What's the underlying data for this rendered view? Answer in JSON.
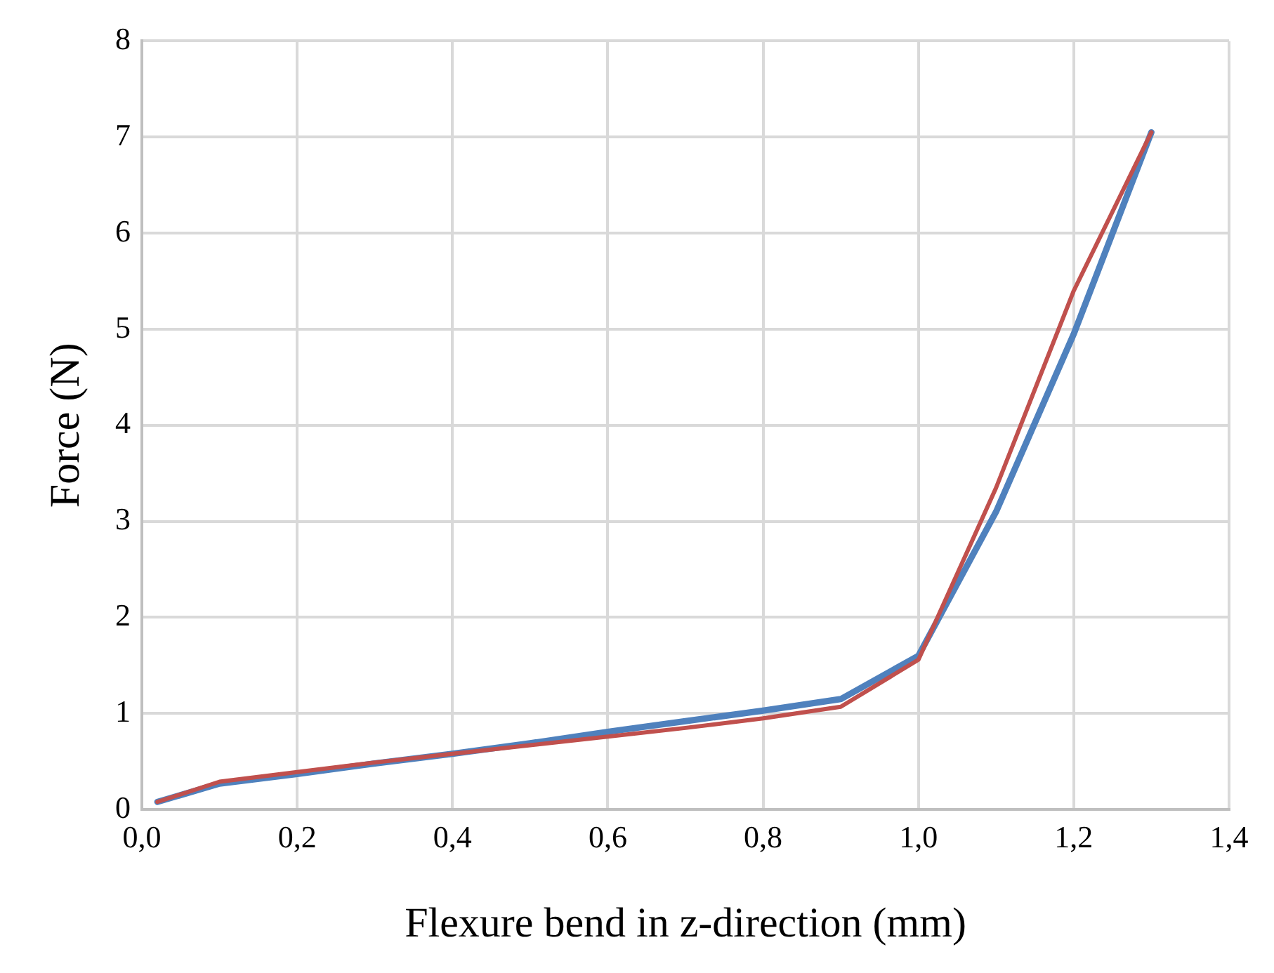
{
  "chart_data": {
    "type": "line",
    "xlabel": "Flexure bend in z-direction (mm)",
    "ylabel": "Force (N)",
    "xlim": [
      0,
      1.4
    ],
    "ylim": [
      0,
      8
    ],
    "xticks": [
      {
        "value": 0,
        "label": "0,0"
      },
      {
        "value": 0.2,
        "label": "0,2"
      },
      {
        "value": 0.4,
        "label": "0,4"
      },
      {
        "value": 0.6,
        "label": "0,6"
      },
      {
        "value": 0.8,
        "label": "0,8"
      },
      {
        "value": 1,
        "label": "1,0"
      },
      {
        "value": 1.2,
        "label": "1,2"
      },
      {
        "value": 1.4,
        "label": "1,4"
      }
    ],
    "yticks": [
      0,
      1,
      2,
      3,
      4,
      5,
      6,
      7,
      8
    ],
    "grid": true,
    "legend": false,
    "marker": "none",
    "line_style": "solid",
    "x": [
      0.02,
      0.1,
      0.2,
      0.3,
      0.4,
      0.5,
      0.6,
      0.7,
      0.8,
      0.9,
      1.0,
      1.1,
      1.2,
      1.3
    ],
    "series": [
      {
        "color": "#4f81bd",
        "values": [
          0.08,
          0.27,
          0.37,
          0.48,
          0.58,
          0.69,
          0.81,
          0.92,
          1.03,
          1.15,
          1.6,
          3.1,
          4.95,
          7.05
        ]
      },
      {
        "color": "#c0504d",
        "values": [
          0.08,
          0.29,
          0.39,
          0.49,
          0.58,
          0.67,
          0.76,
          0.85,
          0.95,
          1.07,
          1.56,
          3.35,
          5.4,
          7.05
        ]
      }
    ]
  }
}
